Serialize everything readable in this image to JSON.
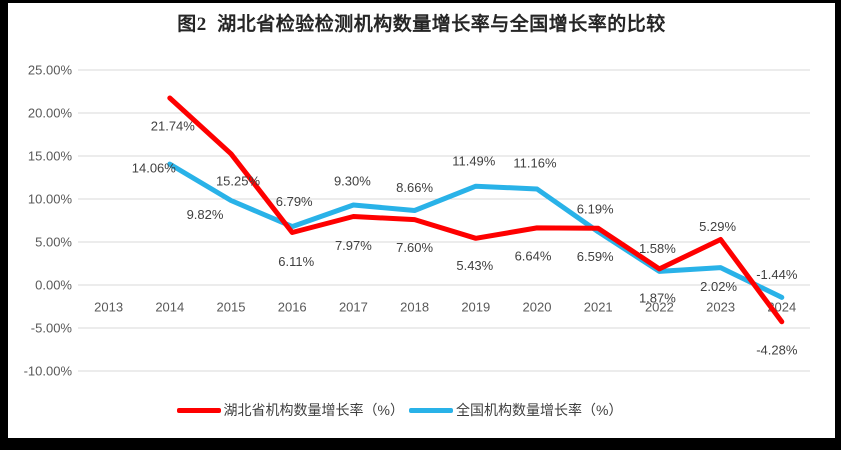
{
  "title": "图2  湖北省检验检测机构数量增长率与全国增长率的比较",
  "chart_data": {
    "type": "line",
    "title": "图2  湖北省检验检测机构数量增长率与全国增长率的比较",
    "x_labels": [
      "2013",
      "2014",
      "2015",
      "2016",
      "2017",
      "2018",
      "2019",
      "2020",
      "2021",
      "2022",
      "2023",
      "2024"
    ],
    "y_axis": {
      "tick_labels": [
        "25.00%",
        "20.00%",
        "15.00%",
        "10.00%",
        "5.00%",
        "0.00%",
        "-5.00%",
        "-10.00%"
      ],
      "tick_values": [
        25,
        20,
        15,
        10,
        5,
        0,
        -5,
        -10
      ],
      "ylim": [
        -10,
        25
      ],
      "grid": true
    },
    "series": [
      {
        "id": "hubei",
        "name": "湖北省机构数量增长率（%）",
        "color": "#FE0000",
        "values": [
          null,
          21.74,
          15.25,
          6.11,
          7.97,
          7.6,
          5.43,
          6.64,
          6.59,
          1.87,
          5.29,
          -4.28
        ],
        "point_labels": [
          "21.74%",
          "15.25%",
          "6.11%",
          "7.97%",
          "7.60%",
          "5.43%",
          "6.64%",
          "6.59%",
          "1.87%",
          "5.29%",
          "-4.28%"
        ]
      },
      {
        "id": "national",
        "name": "全国机构数量增长率（%）",
        "color": "#29B2E8",
        "values": [
          null,
          14.06,
          9.82,
          6.79,
          9.3,
          8.66,
          11.49,
          11.16,
          6.19,
          1.58,
          2.02,
          -1.44
        ],
        "point_labels": [
          "14.06%",
          "9.82%",
          "6.79%",
          "9.30%",
          "8.66%",
          "11.49%",
          "11.16%",
          "6.19%",
          "1.58%",
          "2.02%",
          "-1.44%"
        ]
      }
    ],
    "legend_position": "bottom"
  },
  "colors": {
    "gridline": "#D9D9D9",
    "axis_text": "#595959",
    "data_label_text": "#404040",
    "title_text": "#262626",
    "background": "#FFFFFF",
    "frame": "#000000"
  }
}
